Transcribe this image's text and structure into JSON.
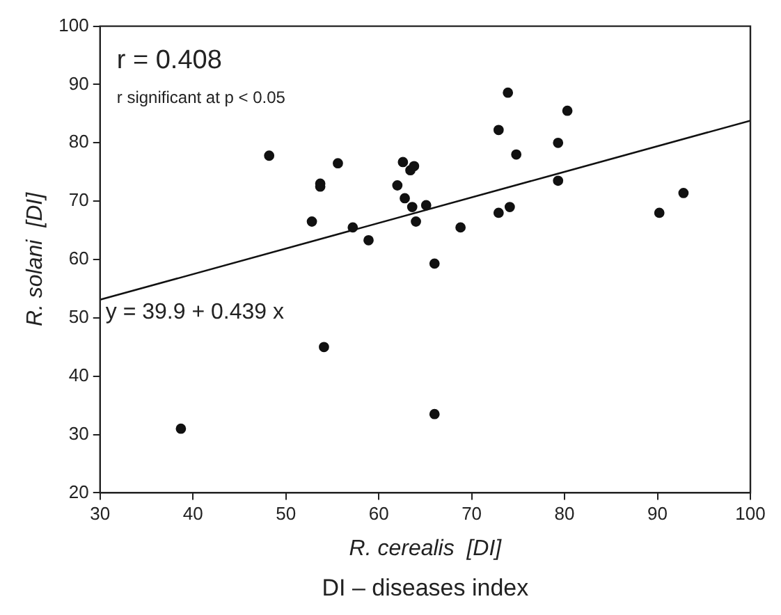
{
  "chart_data": {
    "type": "scatter",
    "xlabel": "R. cerealis  [DI]",
    "ylabel": "R. solani  [DI]",
    "annotations": [
      "r = 0.408",
      "r significant at p < 0.05",
      "y = 39.9 + 0.439 x",
      "DI – diseases index"
    ],
    "xlim": [
      30,
      100
    ],
    "ylim": [
      20,
      100
    ],
    "xticks": [
      30,
      40,
      50,
      60,
      70,
      80,
      90,
      100
    ],
    "yticks": [
      20,
      30,
      40,
      50,
      60,
      70,
      80,
      90,
      100
    ],
    "grid": false,
    "legend": false,
    "marker": "circle",
    "series": [
      {
        "color": "#111111",
        "x": [
          38.7,
          48.2,
          52.8,
          53.7,
          53.7,
          54.1,
          55.6,
          57.2,
          58.9,
          62.0,
          62.6,
          62.8,
          63.4,
          63.8,
          63.6,
          64.0,
          65.1,
          66.0,
          66.0,
          68.8,
          72.9,
          72.9,
          73.9,
          74.1,
          74.8,
          79.3,
          79.3,
          80.3,
          90.2,
          92.8
        ],
        "values": [
          31,
          77.8,
          66.5,
          73.0,
          72.5,
          45,
          76.5,
          65.5,
          63.3,
          72.7,
          76.7,
          70.5,
          75.3,
          76.0,
          69,
          66.5,
          69.3,
          59.3,
          33.5,
          65.5,
          82.2,
          68,
          88.6,
          69,
          78,
          80,
          73.5,
          85.5,
          68,
          71.4
        ]
      },
      {
        "type": "line",
        "marker": "none",
        "line_style": "solid",
        "color": "#111111",
        "x": [
          30,
          100
        ],
        "values": [
          53.1,
          83.8
        ]
      }
    ]
  }
}
